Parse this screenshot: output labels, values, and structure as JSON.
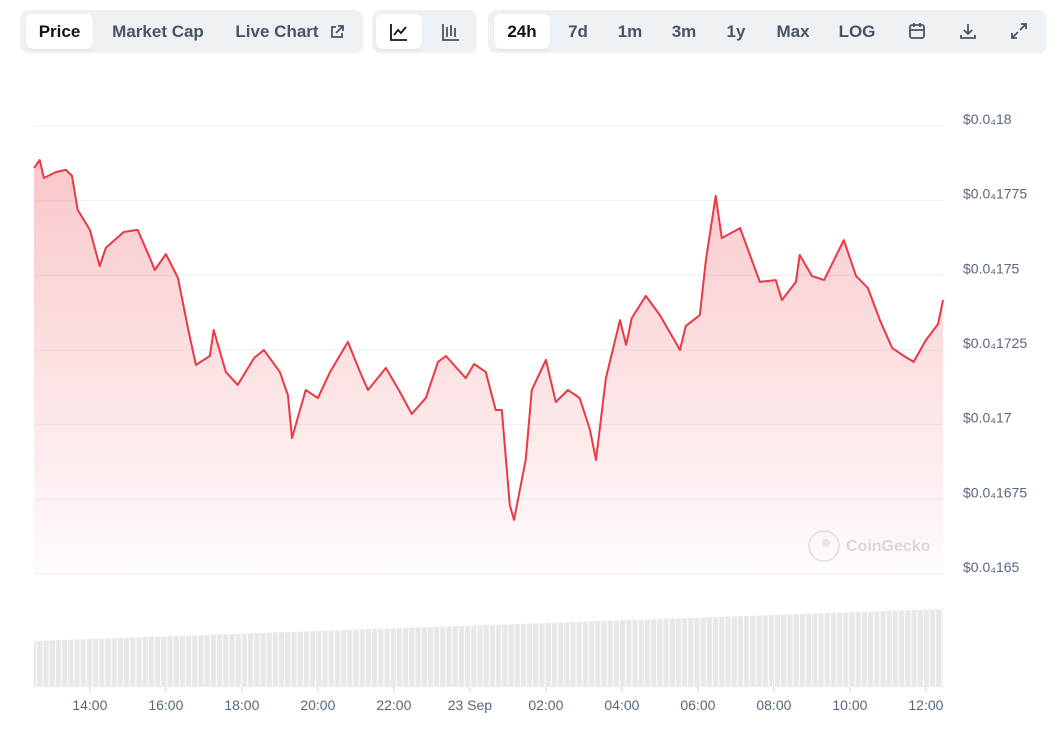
{
  "toolbar": {
    "views": [
      "Price",
      "Market Cap",
      "Live Chart"
    ],
    "ranges": [
      "24h",
      "7d",
      "1m",
      "3m",
      "1y",
      "Max",
      "LOG"
    ]
  },
  "watermark": "CoinGecko",
  "chart_data": {
    "type": "line",
    "color": "#ea3943",
    "x": [
      12.53,
      12.68,
      12.79,
      13.11,
      13.37,
      13.53,
      13.68,
      14.0,
      14.26,
      14.42,
      14.89,
      15.26,
      15.58,
      15.71,
      16.0,
      16.32,
      16.58,
      16.79,
      17.16,
      17.26,
      17.58,
      17.89,
      18.32,
      18.58,
      19.0,
      19.21,
      19.32,
      19.68,
      20.0,
      20.32,
      20.79,
      21.11,
      21.32,
      21.79,
      22.16,
      22.47,
      22.84,
      23.16,
      23.37,
      23.89,
      24.11,
      24.42,
      24.68,
      24.84,
      25.05,
      25.16,
      25.47,
      25.63,
      26.0,
      26.26,
      26.58,
      26.89,
      27.16,
      27.32,
      27.58,
      27.95,
      28.11,
      28.26,
      28.63,
      29.0,
      29.53,
      29.68,
      30.05,
      30.21,
      30.47,
      30.63,
      31.11,
      31.63,
      32.05,
      32.21,
      32.58,
      32.68,
      33.0,
      33.32,
      33.84,
      34.16,
      34.47,
      34.79,
      35.11,
      35.42,
      35.68,
      36.0,
      36.32,
      36.45
    ],
    "values": [
      1.7859e-05,
      1.7886e-05,
      1.7826e-05,
      1.7846e-05,
      1.7853e-05,
      1.7833e-05,
      1.7719e-05,
      1.7652e-05,
      1.7531e-05,
      1.7592e-05,
      1.7645e-05,
      1.7652e-05,
      1.7558e-05,
      1.7518e-05,
      1.7571e-05,
      1.7491e-05,
      1.7324e-05,
      1.72e-05,
      1.723e-05,
      1.7317e-05,
      1.7176e-05,
      1.7133e-05,
      1.7223e-05,
      1.725e-05,
      1.7176e-05,
      1.7099e-05,
      1.6955e-05,
      1.7116e-05,
      1.7089e-05,
      1.7176e-05,
      1.7277e-05,
      1.7176e-05,
      1.7116e-05,
      1.719e-05,
      1.7109e-05,
      1.7036e-05,
      1.7089e-05,
      1.721e-05,
      1.723e-05,
      1.7156e-05,
      1.7203e-05,
      1.7176e-05,
      1.7049e-05,
      1.7049e-05,
      1.6731e-05,
      1.6681e-05,
      1.6882e-05,
      1.7116e-05,
      1.7217e-05,
      1.7076e-05,
      1.7116e-05,
      1.7089e-05,
      1.6982e-05,
      1.6882e-05,
      1.7156e-05,
      1.735e-05,
      1.7267e-05,
      1.7357e-05,
      1.7431e-05,
      1.7367e-05,
      1.725e-05,
      1.733e-05,
      1.7367e-05,
      1.7551e-05,
      1.7766e-05,
      1.7625e-05,
      1.7658e-05,
      1.7478e-05,
      1.7484e-05,
      1.7417e-05,
      1.7478e-05,
      1.7568e-05,
      1.7498e-05,
      1.7484e-05,
      1.7618e-05,
      1.7498e-05,
      1.7458e-05,
      1.735e-05,
      1.7257e-05,
      1.723e-05,
      1.721e-05,
      1.7283e-05,
      1.7337e-05,
      1.7417e-05
    ],
    "xlim": [
      12.53,
      36.45
    ],
    "xticks": [
      {
        "value": 14,
        "label": "14:00"
      },
      {
        "value": 16,
        "label": "16:00"
      },
      {
        "value": 18,
        "label": "18:00"
      },
      {
        "value": 20,
        "label": "20:00"
      },
      {
        "value": 22,
        "label": "22:00"
      },
      {
        "value": 24,
        "label": "23 Sep"
      },
      {
        "value": 26,
        "label": "02:00"
      },
      {
        "value": 28,
        "label": "04:00"
      },
      {
        "value": 30,
        "label": "06:00"
      },
      {
        "value": 32,
        "label": "08:00"
      },
      {
        "value": 34,
        "label": "10:00"
      },
      {
        "value": 36,
        "label": "12:00"
      }
    ],
    "ylim": [
      1.65e-05,
      1.8e-05
    ],
    "yticks": [
      {
        "value": 1.65e-05,
        "label": "$0.0₄165"
      },
      {
        "value": 1.675e-05,
        "label": "$0.0₄1675"
      },
      {
        "value": 1.7e-05,
        "label": "$0.0₄17"
      },
      {
        "value": 1.725e-05,
        "label": "$0.0₄1725"
      },
      {
        "value": 1.75e-05,
        "label": "$0.0₄175"
      },
      {
        "value": 1.775e-05,
        "label": "$0.0₄1775"
      },
      {
        "value": 1.8e-05,
        "label": "$0.0₄18"
      }
    ],
    "grid": true
  }
}
